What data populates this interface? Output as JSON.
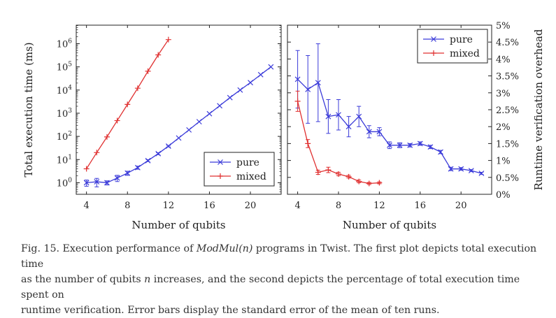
{
  "chart_data": [
    {
      "type": "line",
      "yscale": "log",
      "xlabel": "Number of qubits",
      "ylabel": "Total execution time (ms)",
      "xlim": [
        3,
        23
      ],
      "ylim_exp": [
        -0.5,
        6.8
      ],
      "xticks": [
        4,
        8,
        12,
        16,
        20
      ],
      "yticks_exp": [
        0,
        1,
        2,
        3,
        4,
        5,
        6
      ],
      "legend": "bottom-right",
      "series": [
        {
          "name": "pure",
          "color": "#3b3bd9",
          "marker": "x",
          "x": [
            4,
            5,
            6,
            7,
            8,
            9,
            10,
            11,
            12,
            13,
            14,
            15,
            16,
            17,
            18,
            19,
            20,
            21,
            22
          ],
          "y": [
            1.0,
            1.1,
            1.0,
            1.6,
            2.6,
            4.5,
            9,
            18,
            38,
            85,
            190,
            430,
            950,
            2100,
            4700,
            10000,
            21000,
            46000,
            100000
          ],
          "err_frac": [
            0.3,
            0.4,
            0.2,
            0.3,
            0.2,
            0.15,
            0.1,
            0.1,
            0.08,
            0.05,
            0.05,
            0.05,
            0.05,
            0.05,
            0.05,
            0.05,
            0.05,
            0.05,
            0.05
          ]
        },
        {
          "name": "mixed",
          "color": "#e03030",
          "marker": "+",
          "x": [
            4,
            5,
            6,
            7,
            8,
            9,
            10,
            11,
            12
          ],
          "y": [
            4,
            20,
            95,
            480,
            2400,
            12000,
            65000,
            330000,
            1500000
          ],
          "err_frac": [
            0.05,
            0.05,
            0.05,
            0.05,
            0.05,
            0.05,
            0.05,
            0.05,
            0.05
          ]
        }
      ]
    },
    {
      "type": "line",
      "ylabel": "Runtime verification overhead",
      "xlabel": "Number of qubits",
      "xlim": [
        3,
        23
      ],
      "ylim": [
        0,
        5
      ],
      "xticks": [
        4,
        8,
        12,
        16,
        20
      ],
      "yticks": [
        0,
        0.5,
        1,
        1.5,
        2,
        2.5,
        3,
        3.5,
        4,
        4.5,
        5
      ],
      "ytick_labels": [
        "0%",
        "0.5%",
        "1%",
        "1.5%",
        "2%",
        "2.5%",
        "3%",
        "3.5%",
        "4%",
        "4.5%",
        "5%"
      ],
      "legend": "top-right",
      "series": [
        {
          "name": "pure",
          "color": "#3b3bd9",
          "marker": "x",
          "x": [
            4,
            5,
            6,
            7,
            8,
            9,
            10,
            11,
            12,
            13,
            14,
            15,
            16,
            17,
            18,
            19,
            20,
            21,
            22
          ],
          "y": [
            3.4,
            3.1,
            3.3,
            2.3,
            2.35,
            2.0,
            2.3,
            1.85,
            1.85,
            1.45,
            1.45,
            1.45,
            1.5,
            1.4,
            1.25,
            0.75,
            0.75,
            0.7,
            0.62
          ],
          "err": [
            0.85,
            1.0,
            1.15,
            0.5,
            0.45,
            0.3,
            0.3,
            0.18,
            0.12,
            0.1,
            0.07,
            0.05,
            0.05,
            0.05,
            0.05,
            0.05,
            0.04,
            0.03,
            0.03
          ]
        },
        {
          "name": "mixed",
          "color": "#e03030",
          "marker": "+",
          "x": [
            4,
            5,
            6,
            7,
            8,
            9,
            10,
            11,
            12
          ],
          "y": [
            2.75,
            1.5,
            0.65,
            0.72,
            0.6,
            0.52,
            0.38,
            0.32,
            0.34
          ],
          "err": [
            0.3,
            0.12,
            0.06,
            0.08,
            0.05,
            0.04,
            0.04,
            0.03,
            0.03
          ]
        }
      ]
    }
  ],
  "caption": {
    "prefix": "Fig. 15.  Execution performance of ",
    "emph": "ModMul(n)",
    "rest1": " programs in Twist. The first plot depicts total execution time",
    "line2": "as the number of qubits ",
    "var_n": "n",
    "line2b": " increases, and the second depicts the percentage of total execution time spent on",
    "line3": "runtime verification. Error bars display the standard error of the mean of ten runs."
  }
}
